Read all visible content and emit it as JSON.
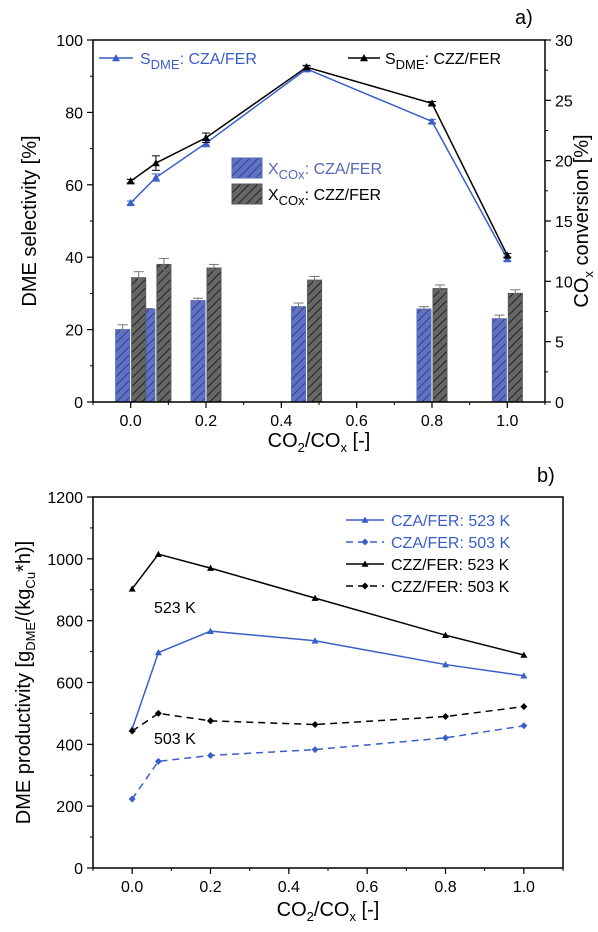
{
  "chart_data": [
    {
      "type": "bar+line",
      "panel_label": "a)",
      "xlabel": {
        "main": "CO",
        "sub1": "2",
        "mid": "/CO",
        "sub2": "x",
        "tail": " [-]"
      },
      "ylabel": "DME selectivity [%]",
      "y2label": {
        "main": "CO",
        "sub": "x",
        "tail": " conversion [%]"
      },
      "xlim": [
        -0.1,
        1.1
      ],
      "ylim": [
        0,
        100
      ],
      "y2lim": [
        0,
        30
      ],
      "x_ticks": [
        "0.0",
        "0.2",
        "0.4",
        "0.6",
        "0.8",
        "1.0"
      ],
      "y_ticks": [
        "0",
        "20",
        "40",
        "60",
        "80",
        "100"
      ],
      "y2_ticks": [
        "0",
        "5",
        "10",
        "15",
        "20",
        "25",
        "30"
      ],
      "lines": [
        {
          "name": {
            "main": "S",
            "sub": "DME",
            "tail": ": CZA/FER"
          },
          "color": "#3a5ec8",
          "x": [
            0.0,
            0.067,
            0.2,
            0.467,
            0.8,
            1.0
          ],
          "y": [
            55,
            62,
            71.5,
            92,
            77.5,
            39.5
          ],
          "err": [
            0.5,
            1.0,
            1.0,
            0.8,
            0.5,
            0.5
          ]
        },
        {
          "name": {
            "main": "S",
            "sub": "DME",
            "tail": ": CZZ/FER"
          },
          "color": "#000000",
          "x": [
            0.0,
            0.067,
            0.2,
            0.467,
            0.8,
            1.0
          ],
          "y": [
            61,
            66,
            73,
            92.5,
            82.5,
            40.5
          ],
          "err": [
            0.5,
            2.0,
            1.3,
            0.5,
            0.5,
            0.5
          ]
        }
      ],
      "bars": [
        {
          "name": {
            "main": "X",
            "sub": "COx",
            "tail": ": CZA/FER"
          },
          "color": "#5668b8",
          "x": [
            0.0,
            0.067,
            0.2,
            0.467,
            0.8,
            1.0
          ],
          "values": [
            6.0,
            7.7,
            8.4,
            7.9,
            7.7,
            6.9
          ],
          "err": [
            0.4,
            0.05,
            0.2,
            0.3,
            0.2,
            0.3
          ]
        },
        {
          "name": {
            "main": "X",
            "sub": "COx",
            "tail": ": CZZ/FER"
          },
          "color": "#555555",
          "x": [
            0.0,
            0.067,
            0.2,
            0.467,
            0.8,
            1.0
          ],
          "values": [
            10.3,
            11.4,
            11.1,
            10.1,
            9.4,
            9.0
          ],
          "err": [
            0.5,
            0.5,
            0.3,
            0.3,
            0.3,
            0.3
          ]
        }
      ]
    },
    {
      "type": "line",
      "panel_label": "b)",
      "xlabel": {
        "main": "CO",
        "sub1": "2",
        "mid": "/CO",
        "sub2": "x",
        "tail": " [-]"
      },
      "ylabel": {
        "a": "DME productivity [g",
        "s1": "DME",
        "b": "/(kg",
        "s2": "Cu",
        "c": "*h)]"
      },
      "xlim": [
        -0.1,
        1.1
      ],
      "ylim": [
        0,
        1200
      ],
      "x_ticks": [
        "0.0",
        "0.2",
        "0.4",
        "0.6",
        "0.8",
        "1.0"
      ],
      "y_ticks": [
        "0",
        "200",
        "400",
        "600",
        "800",
        "1000",
        "1200"
      ],
      "annotations": [
        "523 K",
        "503 K"
      ],
      "series": [
        {
          "name": "CZA/FER: 523 K",
          "color": "#3a5ec8",
          "dash": false,
          "marker": "triangle",
          "x": [
            0.0,
            0.067,
            0.2,
            0.467,
            0.8,
            1.0
          ],
          "y": [
            450,
            697,
            766,
            735,
            658,
            622
          ]
        },
        {
          "name": "CZA/FER: 503 K",
          "color": "#3a5ec8",
          "dash": true,
          "marker": "diamond",
          "x": [
            0.0,
            0.067,
            0.2,
            0.467,
            0.8,
            1.0
          ],
          "y": [
            223,
            345,
            364,
            383,
            421,
            460
          ]
        },
        {
          "name": "CZZ/FER: 523 K",
          "color": "#000000",
          "dash": false,
          "marker": "triangle",
          "x": [
            0.0,
            0.067,
            0.2,
            0.467,
            0.8,
            1.0
          ],
          "y": [
            903,
            1015,
            970,
            873,
            753,
            689
          ]
        },
        {
          "name": "CZZ/FER: 503 K",
          "color": "#000000",
          "dash": true,
          "marker": "diamond",
          "x": [
            0.0,
            0.067,
            0.2,
            0.467,
            0.8,
            1.0
          ],
          "y": [
            443,
            500,
            476,
            464,
            490,
            522
          ]
        }
      ]
    }
  ]
}
